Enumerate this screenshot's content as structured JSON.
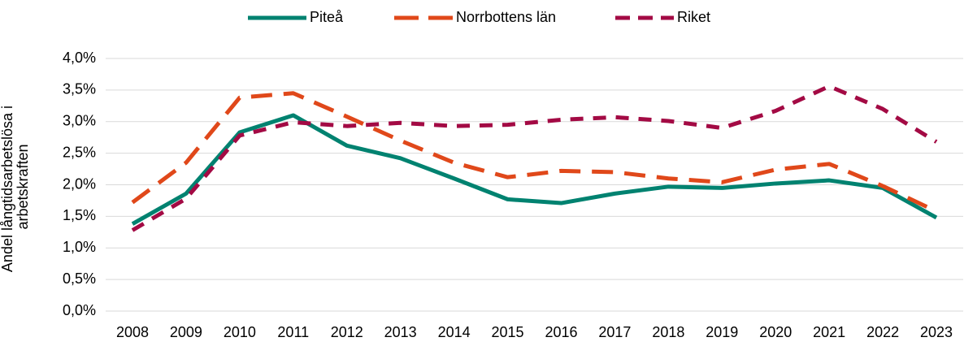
{
  "chart_data": {
    "type": "line",
    "y_label": "Andel långtidsarbetslösa i arbetskraften",
    "categories": [
      "2008",
      "2009",
      "2010",
      "2011",
      "2012",
      "2013",
      "2014",
      "2015",
      "2016",
      "2017",
      "2018",
      "2019",
      "2020",
      "2021",
      "2022",
      "2023"
    ],
    "series": [
      {
        "name": "Piteå",
        "color": "#008270",
        "style": "solid",
        "values": [
          1.38,
          1.86,
          2.83,
          3.1,
          2.62,
          2.42,
          2.1,
          1.77,
          1.71,
          1.86,
          1.97,
          1.95,
          2.02,
          2.07,
          1.95,
          1.48
        ]
      },
      {
        "name": "Norrbottens län",
        "color": "#e0481a",
        "style": "dashed",
        "values": [
          1.72,
          2.35,
          3.38,
          3.45,
          3.08,
          2.7,
          2.35,
          2.12,
          2.22,
          2.2,
          2.1,
          2.04,
          2.24,
          2.33,
          1.98,
          1.58
        ]
      },
      {
        "name": "Riket",
        "color": "#a30a44",
        "style": "dotted",
        "values": [
          1.28,
          1.78,
          2.78,
          2.99,
          2.93,
          2.98,
          2.93,
          2.95,
          3.03,
          3.07,
          3.01,
          2.9,
          3.17,
          3.56,
          3.2,
          2.68
        ]
      }
    ],
    "ylim": [
      0,
      4.0
    ],
    "yticks": [
      {
        "value": 0,
        "label": "0,0%"
      },
      {
        "value": 0.5,
        "label": "0,5%"
      },
      {
        "value": 1.0,
        "label": "1,0%"
      },
      {
        "value": 1.5,
        "label": "1,5%"
      },
      {
        "value": 2.0,
        "label": "2,0%"
      },
      {
        "value": 2.5,
        "label": "2,5%"
      },
      {
        "value": 3.0,
        "label": "3,0%"
      },
      {
        "value": 3.5,
        "label": "3,5%"
      },
      {
        "value": 4.0,
        "label": "4,0%"
      }
    ],
    "grid": true,
    "legend": "top"
  }
}
